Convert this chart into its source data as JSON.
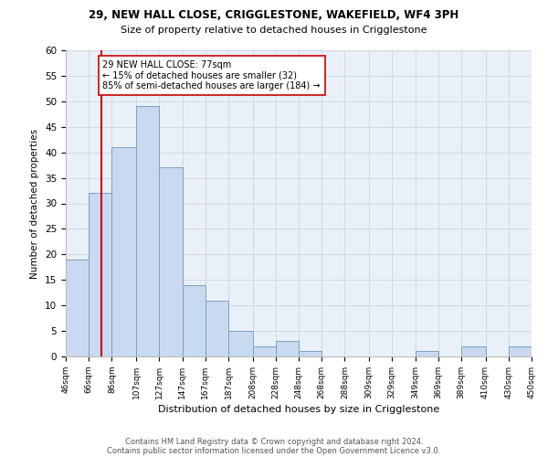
{
  "title1": "29, NEW HALL CLOSE, CRIGGLESTONE, WAKEFIELD, WF4 3PH",
  "title2": "Size of property relative to detached houses in Crigglestone",
  "xlabel": "Distribution of detached houses by size in Crigglestone",
  "ylabel": "Number of detached properties",
  "footer1": "Contains HM Land Registry data © Crown copyright and database right 2024.",
  "footer2": "Contains public sector information licensed under the Open Government Licence v3.0.",
  "bin_labels": [
    "46sqm",
    "66sqm",
    "86sqm",
    "107sqm",
    "127sqm",
    "147sqm",
    "167sqm",
    "187sqm",
    "208sqm",
    "228sqm",
    "248sqm",
    "268sqm",
    "288sqm",
    "309sqm",
    "329sqm",
    "349sqm",
    "369sqm",
    "389sqm",
    "410sqm",
    "430sqm",
    "450sqm"
  ],
  "bin_edges": [
    46,
    66,
    86,
    107,
    127,
    147,
    167,
    187,
    208,
    228,
    248,
    268,
    288,
    309,
    329,
    349,
    369,
    389,
    410,
    430,
    450
  ],
  "bar_heights": [
    19,
    32,
    41,
    49,
    37,
    14,
    11,
    5,
    2,
    3,
    1,
    0,
    0,
    0,
    0,
    1,
    0,
    2,
    0,
    2
  ],
  "bar_color": "#c9d9ef",
  "bar_edge_color": "#7aa0c4",
  "vline_x": 77,
  "vline_color": "#cc0000",
  "annotation_text": "29 NEW HALL CLOSE: 77sqm\n← 15% of detached houses are smaller (32)\n85% of semi-detached houses are larger (184) →",
  "annotation_box_color": "white",
  "annotation_box_edge": "#cc0000",
  "ylim": [
    0,
    60
  ],
  "yticks": [
    0,
    5,
    10,
    15,
    20,
    25,
    30,
    35,
    40,
    45,
    50,
    55,
    60
  ],
  "grid_color": "#d0d8e8",
  "background_color": "#eaf0f8"
}
